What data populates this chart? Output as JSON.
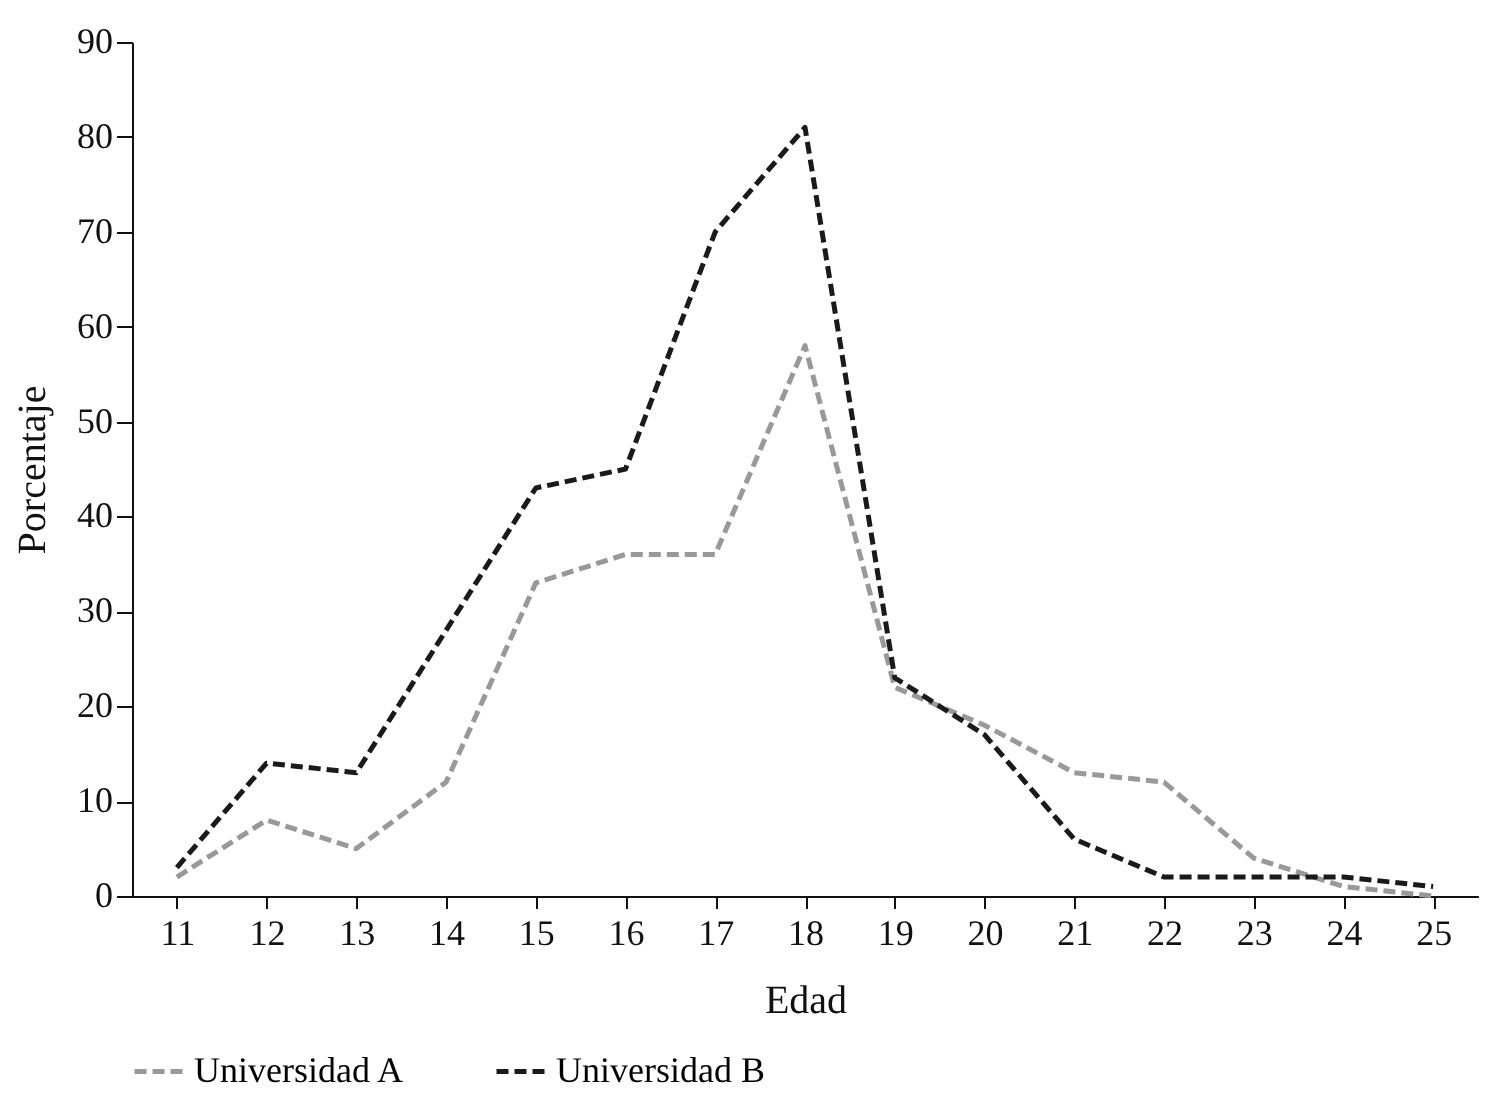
{
  "chart_data": {
    "type": "line",
    "xlabel": "Edad",
    "ylabel": "Porcentaje",
    "x": [
      11,
      12,
      13,
      14,
      15,
      16,
      17,
      18,
      19,
      20,
      21,
      22,
      23,
      24,
      25
    ],
    "series": [
      {
        "name": "Universidad A",
        "color": "#999999",
        "values": [
          2,
          8,
          5,
          12,
          33,
          36,
          36,
          58,
          22,
          18,
          13,
          12,
          4,
          1,
          0
        ]
      },
      {
        "name": "Universidad B",
        "color": "#1a1a1a",
        "values": [
          3,
          14,
          13,
          28,
          43,
          45,
          70,
          81,
          23,
          17,
          6,
          2,
          2,
          2,
          1
        ]
      }
    ],
    "xlim": [
      10.5,
      25.5
    ],
    "xticks": [
      11,
      12,
      13,
      14,
      15,
      16,
      17,
      18,
      19,
      20,
      21,
      22,
      23,
      24,
      25
    ],
    "ylim": [
      0,
      90
    ],
    "yticks": [
      0,
      10,
      20,
      30,
      40,
      50,
      60,
      70,
      80,
      90
    ],
    "grid": false,
    "legend": "bottom",
    "line_style": "dashed"
  }
}
